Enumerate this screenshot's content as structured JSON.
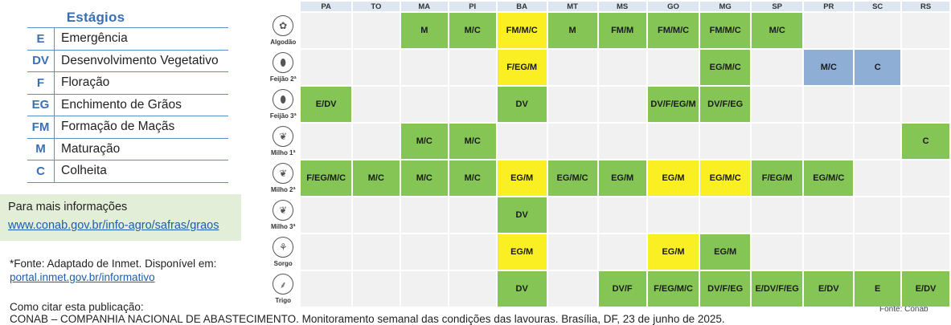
{
  "legend": {
    "title": "Estágios",
    "items": [
      {
        "code": "E",
        "desc": "Emergência"
      },
      {
        "code": "DV",
        "desc": "Desenvolvimento Vegetativo"
      },
      {
        "code": "F",
        "desc": "Floração"
      },
      {
        "code": "EG",
        "desc": "Enchimento de Grãos"
      },
      {
        "code": "FM",
        "desc": "Formação de Maçãs"
      },
      {
        "code": "M",
        "desc": "Maturação"
      },
      {
        "code": "C",
        "desc": "Colheita"
      }
    ]
  },
  "info": {
    "label": "Para mais informações",
    "link": "www.conab.gov.br/info-agro/safras/graos"
  },
  "source": {
    "text": "*Fonte: Adaptado de Inmet. Disponível em:",
    "link": "portal.inmet.gov.br/informativo"
  },
  "citation": {
    "heading": "Como citar esta publicação:",
    "text": "CONAB – COMPANHIA NACIONAL DE ABASTECIMENTO. Monitoramento semanal das condições das lavouras. Brasília, DF, 23 de junho de 2025."
  },
  "fonte": "Fonte: Conab",
  "colors": {
    "green": "#85c556",
    "yellow": "#f9ef22",
    "blue": "#8faed6",
    "empty": "#f1f1f1"
  },
  "table": {
    "columns": [
      "PA",
      "TO",
      "MA",
      "PI",
      "BA",
      "MT",
      "MS",
      "GO",
      "MG",
      "SP",
      "PR",
      "SC",
      "RS"
    ],
    "rows": [
      {
        "crop": "Algodão",
        "icon": "cotton-icon",
        "cells": [
          {
            "t": "",
            "c": ""
          },
          {
            "t": "",
            "c": ""
          },
          {
            "t": "M",
            "c": "g"
          },
          {
            "t": "M/C",
            "c": "g"
          },
          {
            "t": "FM/M/C",
            "c": "y"
          },
          {
            "t": "M",
            "c": "g"
          },
          {
            "t": "FM/M",
            "c": "g"
          },
          {
            "t": "FM/M/C",
            "c": "g"
          },
          {
            "t": "FM/M/C",
            "c": "g"
          },
          {
            "t": "M/C",
            "c": "g"
          },
          {
            "t": "",
            "c": ""
          },
          {
            "t": "",
            "c": ""
          },
          {
            "t": "",
            "c": ""
          }
        ]
      },
      {
        "crop": "Feijão 2ª",
        "icon": "bean-icon",
        "cells": [
          {
            "t": "",
            "c": ""
          },
          {
            "t": "",
            "c": ""
          },
          {
            "t": "",
            "c": ""
          },
          {
            "t": "",
            "c": ""
          },
          {
            "t": "F/EG/M",
            "c": "y"
          },
          {
            "t": "",
            "c": ""
          },
          {
            "t": "",
            "c": ""
          },
          {
            "t": "",
            "c": ""
          },
          {
            "t": "EG/M/C",
            "c": "g"
          },
          {
            "t": "",
            "c": ""
          },
          {
            "t": "M/C",
            "c": "b"
          },
          {
            "t": "C",
            "c": "b"
          },
          {
            "t": "",
            "c": ""
          }
        ]
      },
      {
        "crop": "Feijão 3ª",
        "icon": "bean-icon",
        "cells": [
          {
            "t": "E/DV",
            "c": "g"
          },
          {
            "t": "",
            "c": ""
          },
          {
            "t": "",
            "c": ""
          },
          {
            "t": "",
            "c": ""
          },
          {
            "t": "DV",
            "c": "g"
          },
          {
            "t": "",
            "c": ""
          },
          {
            "t": "",
            "c": ""
          },
          {
            "t": "DV/F/EG/M",
            "c": "g"
          },
          {
            "t": "DV/F/EG",
            "c": "g"
          },
          {
            "t": "",
            "c": ""
          },
          {
            "t": "",
            "c": ""
          },
          {
            "t": "",
            "c": ""
          },
          {
            "t": "",
            "c": ""
          }
        ]
      },
      {
        "crop": "Milho 1ª",
        "icon": "corn-icon",
        "cells": [
          {
            "t": "",
            "c": ""
          },
          {
            "t": "",
            "c": ""
          },
          {
            "t": "M/C",
            "c": "g"
          },
          {
            "t": "M/C",
            "c": "g"
          },
          {
            "t": "",
            "c": ""
          },
          {
            "t": "",
            "c": ""
          },
          {
            "t": "",
            "c": ""
          },
          {
            "t": "",
            "c": ""
          },
          {
            "t": "",
            "c": ""
          },
          {
            "t": "",
            "c": ""
          },
          {
            "t": "",
            "c": ""
          },
          {
            "t": "",
            "c": ""
          },
          {
            "t": "C",
            "c": "g"
          }
        ]
      },
      {
        "crop": "Milho 2ª",
        "icon": "corn-icon",
        "cells": [
          {
            "t": "F/EG/M/C",
            "c": "g"
          },
          {
            "t": "M/C",
            "c": "g"
          },
          {
            "t": "M/C",
            "c": "g"
          },
          {
            "t": "M/C",
            "c": "g"
          },
          {
            "t": "EG/M",
            "c": "y"
          },
          {
            "t": "EG/M/C",
            "c": "g"
          },
          {
            "t": "EG/M",
            "c": "g"
          },
          {
            "t": "EG/M",
            "c": "y"
          },
          {
            "t": "EG/M/C",
            "c": "y"
          },
          {
            "t": "F/EG/M",
            "c": "g"
          },
          {
            "t": "EG/M/C",
            "c": "g"
          },
          {
            "t": "",
            "c": ""
          },
          {
            "t": "",
            "c": ""
          }
        ]
      },
      {
        "crop": "Milho 3ª",
        "icon": "corn-icon",
        "cells": [
          {
            "t": "",
            "c": ""
          },
          {
            "t": "",
            "c": ""
          },
          {
            "t": "",
            "c": ""
          },
          {
            "t": "",
            "c": ""
          },
          {
            "t": "DV",
            "c": "g"
          },
          {
            "t": "",
            "c": ""
          },
          {
            "t": "",
            "c": ""
          },
          {
            "t": "",
            "c": ""
          },
          {
            "t": "",
            "c": ""
          },
          {
            "t": "",
            "c": ""
          },
          {
            "t": "",
            "c": ""
          },
          {
            "t": "",
            "c": ""
          },
          {
            "t": "",
            "c": ""
          }
        ]
      },
      {
        "crop": "Sorgo",
        "icon": "sorghum-icon",
        "cells": [
          {
            "t": "",
            "c": ""
          },
          {
            "t": "",
            "c": ""
          },
          {
            "t": "",
            "c": ""
          },
          {
            "t": "",
            "c": ""
          },
          {
            "t": "EG/M",
            "c": "y"
          },
          {
            "t": "",
            "c": ""
          },
          {
            "t": "",
            "c": ""
          },
          {
            "t": "EG/M",
            "c": "y"
          },
          {
            "t": "EG/M",
            "c": "g"
          },
          {
            "t": "",
            "c": ""
          },
          {
            "t": "",
            "c": ""
          },
          {
            "t": "",
            "c": ""
          },
          {
            "t": "",
            "c": ""
          }
        ]
      },
      {
        "crop": "Trigo",
        "icon": "wheat-icon",
        "cells": [
          {
            "t": "",
            "c": ""
          },
          {
            "t": "",
            "c": ""
          },
          {
            "t": "",
            "c": ""
          },
          {
            "t": "",
            "c": ""
          },
          {
            "t": "DV",
            "c": "g"
          },
          {
            "t": "",
            "c": ""
          },
          {
            "t": "DV/F",
            "c": "g"
          },
          {
            "t": "F/EG/M/C",
            "c": "g"
          },
          {
            "t": "DV/F/EG",
            "c": "g"
          },
          {
            "t": "E/DV/F/EG",
            "c": "g"
          },
          {
            "t": "E/DV",
            "c": "g"
          },
          {
            "t": "E",
            "c": "g"
          },
          {
            "t": "E/DV",
            "c": "g"
          }
        ]
      }
    ]
  }
}
